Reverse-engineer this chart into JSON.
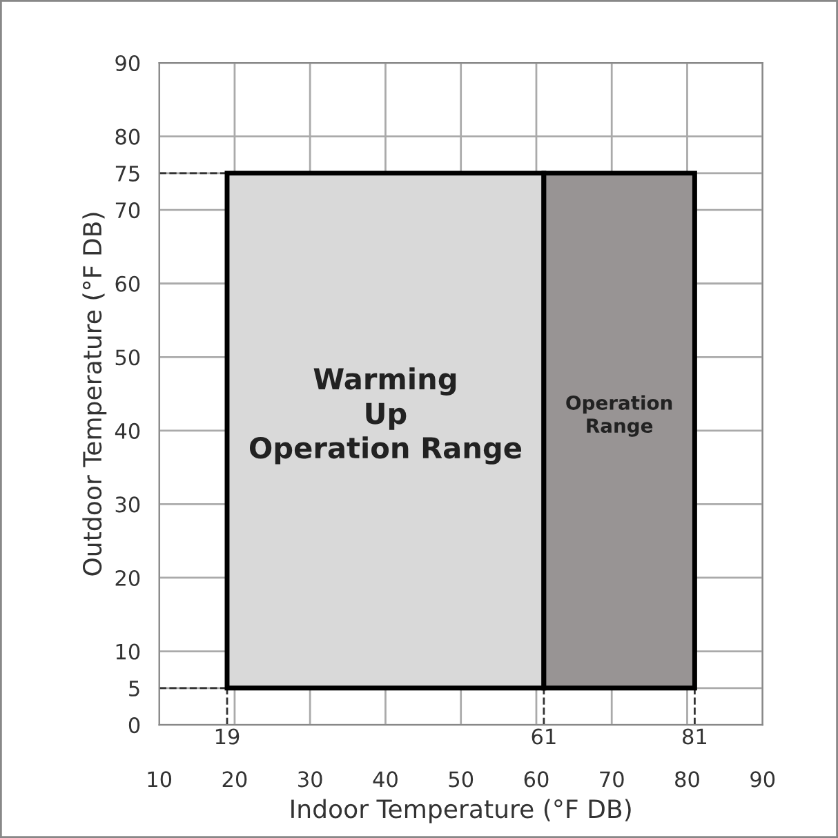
{
  "chart_data": {
    "type": "area",
    "xlabel": "Indoor Temperature (°F DB)",
    "ylabel": "Outdoor Temperature (°F DB)",
    "xlim": [
      10,
      90
    ],
    "ylim": [
      0,
      90
    ],
    "xticks": [
      10,
      20,
      30,
      40,
      50,
      60,
      70,
      80,
      90
    ],
    "yticks": [
      0,
      5,
      10,
      20,
      30,
      40,
      50,
      60,
      70,
      75,
      80,
      90
    ],
    "grid": true,
    "series": [
      {
        "name": "Warming\nUp\nOperation Range",
        "color": "#d9d9d9",
        "x": [
          19,
          19,
          61,
          61
        ],
        "values": [
          5,
          75,
          75,
          5
        ]
      },
      {
        "name": "Operation\nRange",
        "color": "#989494",
        "x": [
          61,
          61,
          81,
          81
        ],
        "values": [
          5,
          75,
          75,
          5
        ]
      }
    ],
    "ref_lines": [
      {
        "axis": "x",
        "value": 19,
        "label": "19",
        "line_style": "dashed"
      },
      {
        "axis": "x",
        "value": 61,
        "label": "61",
        "line_style": "dashed"
      },
      {
        "axis": "x",
        "value": 81,
        "label": "81",
        "line_style": "dashed"
      },
      {
        "axis": "y",
        "value": 5,
        "label": null,
        "line_style": "dashed"
      },
      {
        "axis": "y",
        "value": 75,
        "label": null,
        "line_style": "dashed"
      }
    ]
  }
}
